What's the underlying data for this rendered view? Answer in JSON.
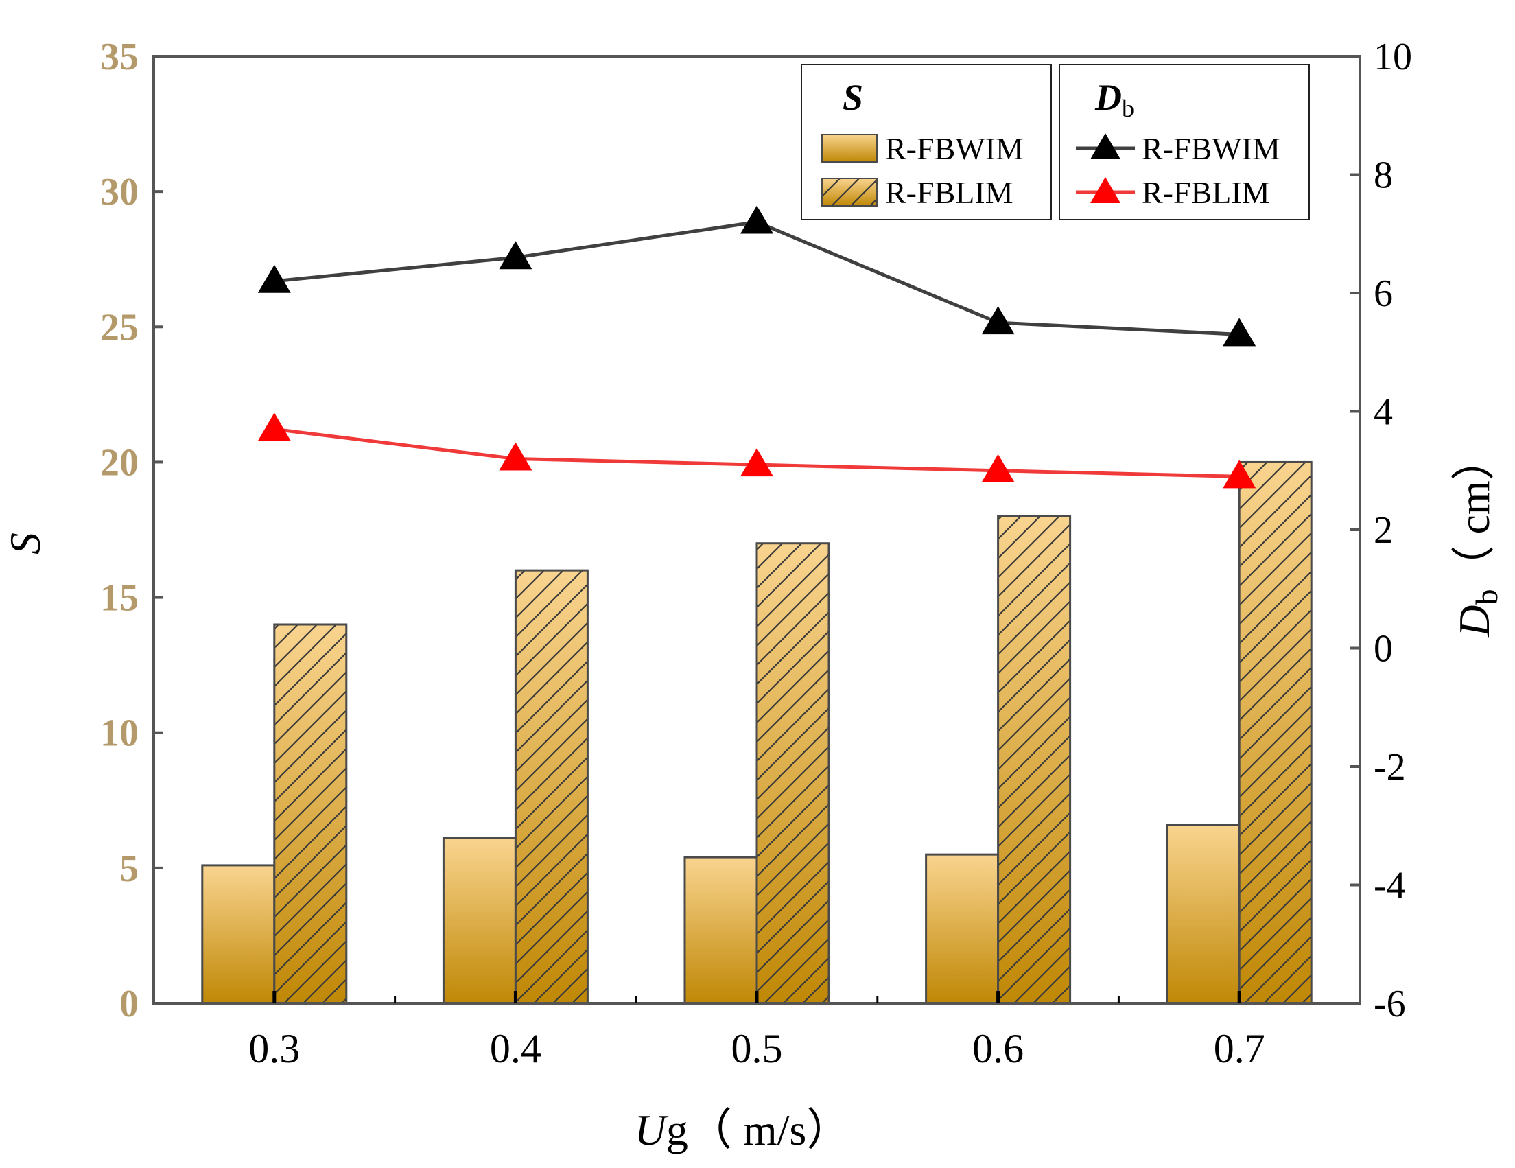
{
  "chart_data": {
    "type": "bar",
    "categories": [
      "0.3",
      "0.4",
      "0.5",
      "0.6",
      "0.7"
    ],
    "x_axis": {
      "label_var": "U",
      "label_rest": "g（ m/s）"
    },
    "left_axis": {
      "label": "S",
      "ylim": [
        0,
        35
      ],
      "ticks": [
        "0",
        "5",
        "10",
        "15",
        "20",
        "25",
        "30",
        "35"
      ],
      "tick_color": "#B49A6B"
    },
    "right_axis": {
      "label_var": "D",
      "label_sub": "b",
      "label_rest": "（ cm）",
      "ylim": [
        -6,
        10
      ],
      "ticks": [
        "-6",
        "-4",
        "-2",
        "0",
        "2",
        "4",
        "6",
        "8",
        "10"
      ]
    },
    "bar_series": [
      {
        "name": "R-FBWIM",
        "values": [
          5.1,
          6.1,
          5.4,
          5.5,
          6.6
        ],
        "hatched": false
      },
      {
        "name": "R-FBLIM",
        "values": [
          14.0,
          16.0,
          17.0,
          18.0,
          20.0
        ],
        "hatched": true
      }
    ],
    "line_series": [
      {
        "name": "R-FBWIM",
        "values": [
          6.2,
          6.6,
          7.2,
          5.5,
          5.3
        ],
        "color": "#404040",
        "marker_color": "#000000"
      },
      {
        "name": "R-FBLIM",
        "values": [
          3.7,
          3.2,
          3.1,
          3.0,
          2.9
        ],
        "color": "#F03A3A",
        "marker_color": "#FF0000"
      }
    ],
    "legend": {
      "bars_title": "S",
      "lines_title_var": "D",
      "lines_title_sub": "b",
      "placement": "top-right"
    },
    "colors": {
      "bar_light": "#F9D48F",
      "bar_dark": "#C08806",
      "bar_edge": "#4A4A4A",
      "axis": "#555555"
    }
  }
}
